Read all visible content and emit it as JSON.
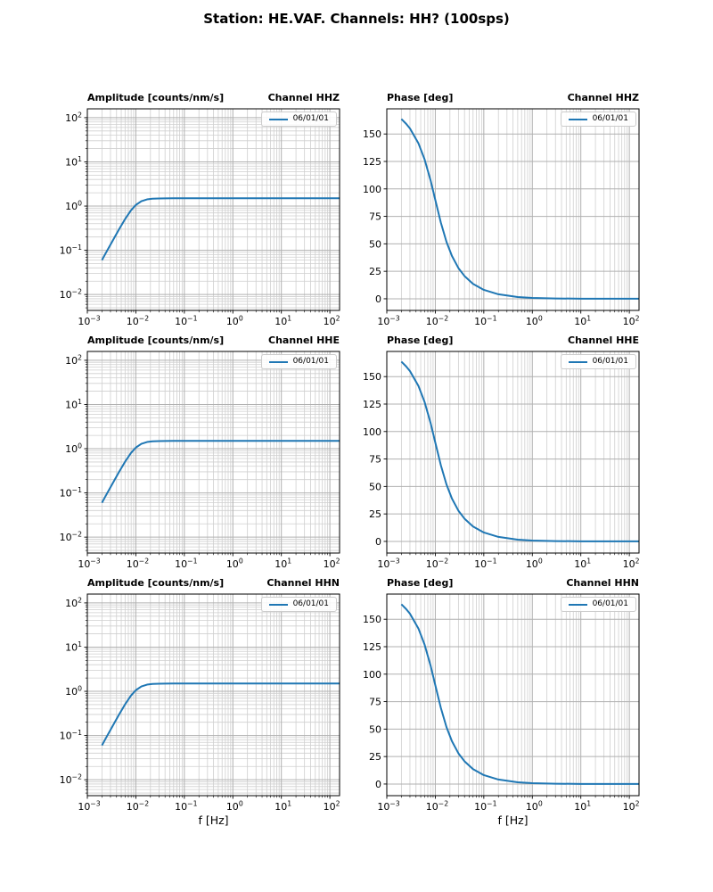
{
  "figure_title": "Station: HE.VAF. Channels: HH? (100sps)",
  "colors": {
    "line": "#1f77b4",
    "grid_major": "#b0b0b0",
    "grid_minor": "#cfcfcf",
    "frame": "#000000",
    "legend_border": "#cccccc"
  },
  "chart_data": [
    {
      "type": "line",
      "scale": "loglog",
      "title": "Amplitude [counts/nm/s]",
      "channel_label": "Channel HHZ",
      "legend": [
        "06/01/01"
      ],
      "legend_position": "upper right",
      "xlabel": "",
      "xlim_log": [
        -3,
        2.2
      ],
      "ylim_log": [
        -2.36,
        2.2
      ],
      "xticks": [
        {
          "v": 0.001,
          "label": "10^−3"
        },
        {
          "v": 0.01,
          "label": "10^−2"
        },
        {
          "v": 0.1,
          "label": "10^−1"
        },
        {
          "v": 1,
          "label": "10^0"
        },
        {
          "v": 10,
          "label": "10^1"
        },
        {
          "v": 100,
          "label": "10^2"
        }
      ],
      "yticks": [
        {
          "v": 100,
          "label": "10^2"
        },
        {
          "v": 10,
          "label": "10^1"
        },
        {
          "v": 1,
          "label": "10^0"
        },
        {
          "v": 0.1,
          "label": "10^−1"
        },
        {
          "v": 0.01,
          "label": "10^−2"
        }
      ],
      "x": [
        0.002,
        0.0025,
        0.003,
        0.0045,
        0.006,
        0.008,
        0.01,
        0.013,
        0.017,
        0.022,
        0.03,
        0.04,
        0.06,
        0.1,
        0.2,
        0.5,
        1,
        3,
        10,
        30,
        100,
        200
      ],
      "y": [
        0.06,
        0.094,
        0.134,
        0.298,
        0.508,
        0.809,
        1.061,
        1.291,
        1.418,
        1.469,
        1.491,
        1.497,
        1.5,
        1.5,
        1.5,
        1.5,
        1.5,
        1.5,
        1.5,
        1.5,
        1.5,
        1.5
      ]
    },
    {
      "type": "line",
      "scale": "semilogx",
      "title": "Phase [deg]",
      "channel_label": "Channel HHZ",
      "legend": [
        "06/01/01"
      ],
      "legend_position": "upper right",
      "xlabel": "",
      "xlim_log": [
        -3,
        2.2
      ],
      "ylim": [
        -10.6,
        172.9
      ],
      "xticks": [
        {
          "v": 0.001,
          "label": "10^−3"
        },
        {
          "v": 0.01,
          "label": "10^−2"
        },
        {
          "v": 0.1,
          "label": "10^−1"
        },
        {
          "v": 1,
          "label": "10^0"
        },
        {
          "v": 10,
          "label": "10^1"
        },
        {
          "v": 100,
          "label": "10^2"
        }
      ],
      "yticks": [
        {
          "v": 150,
          "label": "150"
        },
        {
          "v": 125,
          "label": "125"
        },
        {
          "v": 100,
          "label": "100"
        },
        {
          "v": 75,
          "label": "75"
        },
        {
          "v": 50,
          "label": "50"
        },
        {
          "v": 25,
          "label": "25"
        },
        {
          "v": 0,
          "label": "0"
        }
      ],
      "x": [
        0.002,
        0.0025,
        0.003,
        0.0045,
        0.006,
        0.008,
        0.01,
        0.013,
        0.017,
        0.022,
        0.03,
        0.04,
        0.06,
        0.1,
        0.2,
        0.5,
        1,
        3,
        10,
        30,
        100,
        200
      ],
      "y": [
        163.6,
        159.3,
        155.0,
        141.4,
        127.0,
        107.7,
        90.0,
        69.4,
        51.8,
        39.0,
        27.9,
        20.7,
        13.6,
        8.1,
        4.1,
        1.6,
        0.8,
        0.3,
        0.1,
        0.04,
        0.01,
        0.005
      ]
    },
    {
      "type": "line",
      "scale": "loglog",
      "title": "Amplitude [counts/nm/s]",
      "channel_label": "Channel HHE",
      "legend": [
        "06/01/01"
      ],
      "legend_position": "upper right",
      "xlabel": "",
      "xlim_log": [
        -3,
        2.2
      ],
      "ylim_log": [
        -2.36,
        2.2
      ],
      "xticks": [
        {
          "v": 0.001,
          "label": "10^−3"
        },
        {
          "v": 0.01,
          "label": "10^−2"
        },
        {
          "v": 0.1,
          "label": "10^−1"
        },
        {
          "v": 1,
          "label": "10^0"
        },
        {
          "v": 10,
          "label": "10^1"
        },
        {
          "v": 100,
          "label": "10^2"
        }
      ],
      "yticks": [
        {
          "v": 100,
          "label": "10^2"
        },
        {
          "v": 10,
          "label": "10^1"
        },
        {
          "v": 1,
          "label": "10^0"
        },
        {
          "v": 0.1,
          "label": "10^−1"
        },
        {
          "v": 0.01,
          "label": "10^−2"
        }
      ],
      "x": [
        0.002,
        0.0025,
        0.003,
        0.0045,
        0.006,
        0.008,
        0.01,
        0.013,
        0.017,
        0.022,
        0.03,
        0.04,
        0.06,
        0.1,
        0.2,
        0.5,
        1,
        3,
        10,
        30,
        100,
        200
      ],
      "y": [
        0.06,
        0.094,
        0.134,
        0.298,
        0.508,
        0.809,
        1.061,
        1.291,
        1.418,
        1.469,
        1.491,
        1.497,
        1.5,
        1.5,
        1.5,
        1.5,
        1.5,
        1.5,
        1.5,
        1.5,
        1.5,
        1.5
      ]
    },
    {
      "type": "line",
      "scale": "semilogx",
      "title": "Phase [deg]",
      "channel_label": "Channel HHE",
      "legend": [
        "06/01/01"
      ],
      "legend_position": "upper right",
      "xlabel": "",
      "xlim_log": [
        -3,
        2.2
      ],
      "ylim": [
        -10.6,
        172.9
      ],
      "xticks": [
        {
          "v": 0.001,
          "label": "10^−3"
        },
        {
          "v": 0.01,
          "label": "10^−2"
        },
        {
          "v": 0.1,
          "label": "10^−1"
        },
        {
          "v": 1,
          "label": "10^0"
        },
        {
          "v": 10,
          "label": "10^1"
        },
        {
          "v": 100,
          "label": "10^2"
        }
      ],
      "yticks": [
        {
          "v": 150,
          "label": "150"
        },
        {
          "v": 125,
          "label": "125"
        },
        {
          "v": 100,
          "label": "100"
        },
        {
          "v": 75,
          "label": "75"
        },
        {
          "v": 50,
          "label": "50"
        },
        {
          "v": 25,
          "label": "25"
        },
        {
          "v": 0,
          "label": "0"
        }
      ],
      "x": [
        0.002,
        0.0025,
        0.003,
        0.0045,
        0.006,
        0.008,
        0.01,
        0.013,
        0.017,
        0.022,
        0.03,
        0.04,
        0.06,
        0.1,
        0.2,
        0.5,
        1,
        3,
        10,
        30,
        100,
        200
      ],
      "y": [
        163.6,
        159.3,
        155.0,
        141.4,
        127.0,
        107.7,
        90.0,
        69.4,
        51.8,
        39.0,
        27.9,
        20.7,
        13.6,
        8.1,
        4.1,
        1.6,
        0.8,
        0.3,
        0.1,
        0.04,
        0.01,
        0.005
      ]
    },
    {
      "type": "line",
      "scale": "loglog",
      "title": "Amplitude [counts/nm/s]",
      "channel_label": "Channel HHN",
      "legend": [
        "06/01/01"
      ],
      "legend_position": "upper right",
      "xlabel": "f [Hz]",
      "xlim_log": [
        -3,
        2.2
      ],
      "ylim_log": [
        -2.36,
        2.2
      ],
      "xticks": [
        {
          "v": 0.001,
          "label": "10^−3"
        },
        {
          "v": 0.01,
          "label": "10^−2"
        },
        {
          "v": 0.1,
          "label": "10^−1"
        },
        {
          "v": 1,
          "label": "10^0"
        },
        {
          "v": 10,
          "label": "10^1"
        },
        {
          "v": 100,
          "label": "10^2"
        }
      ],
      "yticks": [
        {
          "v": 100,
          "label": "10^2"
        },
        {
          "v": 10,
          "label": "10^1"
        },
        {
          "v": 1,
          "label": "10^0"
        },
        {
          "v": 0.1,
          "label": "10^−1"
        },
        {
          "v": 0.01,
          "label": "10^−2"
        }
      ],
      "x": [
        0.002,
        0.0025,
        0.003,
        0.0045,
        0.006,
        0.008,
        0.01,
        0.013,
        0.017,
        0.022,
        0.03,
        0.04,
        0.06,
        0.1,
        0.2,
        0.5,
        1,
        3,
        10,
        30,
        100,
        200
      ],
      "y": [
        0.06,
        0.094,
        0.134,
        0.298,
        0.508,
        0.809,
        1.061,
        1.291,
        1.418,
        1.469,
        1.491,
        1.497,
        1.5,
        1.5,
        1.5,
        1.5,
        1.5,
        1.5,
        1.5,
        1.5,
        1.5,
        1.5
      ]
    },
    {
      "type": "line",
      "scale": "semilogx",
      "title": "Phase [deg]",
      "channel_label": "Channel HHN",
      "legend": [
        "06/01/01"
      ],
      "legend_position": "upper right",
      "xlabel": "f [Hz]",
      "xlim_log": [
        -3,
        2.2
      ],
      "ylim": [
        -10.6,
        172.9
      ],
      "xticks": [
        {
          "v": 0.001,
          "label": "10^−3"
        },
        {
          "v": 0.01,
          "label": "10^−2"
        },
        {
          "v": 0.1,
          "label": "10^−1"
        },
        {
          "v": 1,
          "label": "10^0"
        },
        {
          "v": 10,
          "label": "10^1"
        },
        {
          "v": 100,
          "label": "10^2"
        }
      ],
      "yticks": [
        {
          "v": 150,
          "label": "150"
        },
        {
          "v": 125,
          "label": "125"
        },
        {
          "v": 100,
          "label": "100"
        },
        {
          "v": 75,
          "label": "75"
        },
        {
          "v": 50,
          "label": "50"
        },
        {
          "v": 25,
          "label": "25"
        },
        {
          "v": 0,
          "label": "0"
        }
      ],
      "x": [
        0.002,
        0.0025,
        0.003,
        0.0045,
        0.006,
        0.008,
        0.01,
        0.013,
        0.017,
        0.022,
        0.03,
        0.04,
        0.06,
        0.1,
        0.2,
        0.5,
        1,
        3,
        10,
        30,
        100,
        200
      ],
      "y": [
        163.6,
        159.3,
        155.0,
        141.4,
        127.0,
        107.7,
        90.0,
        69.4,
        51.8,
        39.0,
        27.9,
        20.7,
        13.6,
        8.1,
        4.1,
        1.6,
        0.8,
        0.3,
        0.1,
        0.04,
        0.01,
        0.005
      ]
    }
  ]
}
